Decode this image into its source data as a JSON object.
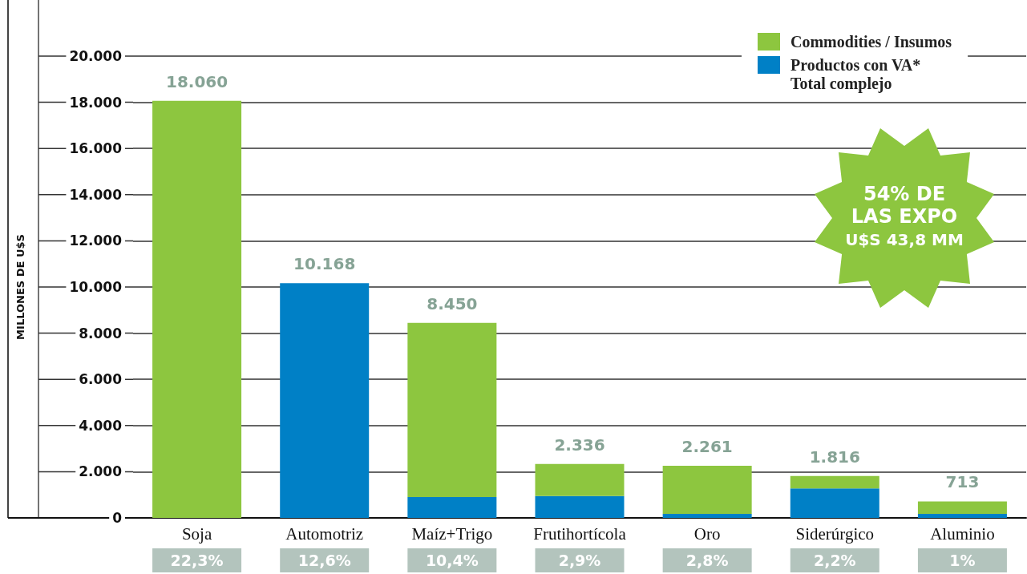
{
  "chart_data": {
    "type": "bar",
    "stacked": true,
    "ylabel": "MILLONES DE U$S",
    "categories": [
      "Soja",
      "Automotriz",
      "Maíz+Trigo",
      "Frutihortícola",
      "Oro",
      "Siderúrgico",
      "Aluminio"
    ],
    "series": [
      {
        "name": "Productos con VA*",
        "color": "#0080c6",
        "values": [
          null,
          10168,
          900,
          950,
          170,
          1280,
          170
        ]
      },
      {
        "name": "Commodities / Insumos",
        "color": "#8dc63f",
        "values": [
          18060,
          null,
          7550,
          1386,
          2091,
          536,
          543
        ]
      }
    ],
    "totals": [
      "18.060",
      "10.168",
      "8.450",
      "2.336",
      "2.261",
      "1.816",
      "713"
    ],
    "ylim": [
      0,
      20000
    ],
    "yticks": [
      0,
      {
        "value": 2000,
        "label": "2.000"
      },
      {
        "value": 4000,
        "label": "4.000"
      },
      {
        "value": 6000,
        "label": "6.000"
      },
      {
        "value": 8000,
        "label": "8.000"
      },
      {
        "value": 10000,
        "label": "10.000"
      },
      {
        "value": 12000,
        "label": "12.000"
      },
      {
        "value": 14000,
        "label": "14.000"
      },
      {
        "value": 16000,
        "label": "16.000"
      },
      {
        "value": 18000,
        "label": "18.000"
      },
      {
        "value": 20000,
        "label": "20.000"
      }
    ],
    "grid": "y",
    "legend": "top right",
    "annotations": [
      "Total complejo",
      "54% DE\nLAS EXPO\nU$S 43,8 MM",
      "22,3%",
      "12,6%",
      "10,4%",
      "2,9%",
      "2,8%",
      "2,2%",
      "1%"
    ]
  }
}
